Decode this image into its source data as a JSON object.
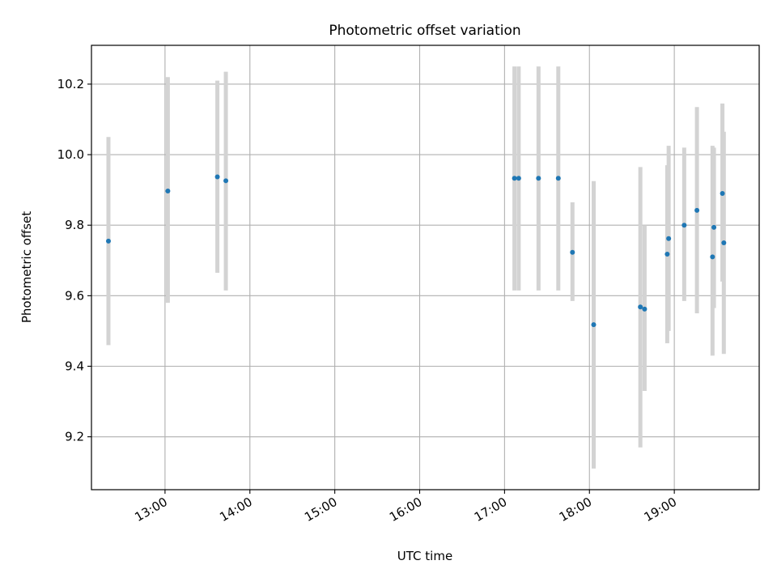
{
  "chart_data": {
    "type": "scatter",
    "title": "Photometric offset variation",
    "xlabel": "UTC time",
    "ylabel": "Photometric offset",
    "grid": true,
    "xlim": [
      "12:08",
      "20:00"
    ],
    "ylim": [
      9.05,
      10.31
    ],
    "x_ticks": [
      "13:00",
      "14:00",
      "15:00",
      "16:00",
      "17:00",
      "18:00",
      "19:00"
    ],
    "y_ticks": [
      "9.2",
      "9.4",
      "9.6",
      "9.8",
      "10.0",
      "10.2"
    ],
    "colors": {
      "point": "#1f77b4",
      "errorbar": "#d3d3d3",
      "grid": "#b0b0b0"
    },
    "series": [
      {
        "points": [
          {
            "x": "12:20",
            "y": 9.755,
            "ylow": 9.46,
            "yhigh": 10.05
          },
          {
            "x": "13:02",
            "y": 9.897,
            "ylow": 9.58,
            "yhigh": 10.22
          },
          {
            "x": "13:37",
            "y": 9.937,
            "ylow": 9.665,
            "yhigh": 10.21
          },
          {
            "x": "13:43",
            "y": 9.926,
            "ylow": 9.615,
            "yhigh": 10.235
          },
          {
            "x": "17:07",
            "y": 9.933,
            "ylow": 9.615,
            "yhigh": 10.25
          },
          {
            "x": "17:10",
            "y": 9.933,
            "ylow": 9.615,
            "yhigh": 10.25
          },
          {
            "x": "17:24",
            "y": 9.933,
            "ylow": 9.615,
            "yhigh": 10.25
          },
          {
            "x": "17:38",
            "y": 9.933,
            "ylow": 9.615,
            "yhigh": 10.25
          },
          {
            "x": "17:48",
            "y": 9.723,
            "ylow": 9.585,
            "yhigh": 9.865
          },
          {
            "x": "18:03",
            "y": 9.518,
            "ylow": 9.11,
            "yhigh": 9.925
          },
          {
            "x": "18:36",
            "y": 9.568,
            "ylow": 9.17,
            "yhigh": 9.965
          },
          {
            "x": "18:39",
            "y": 9.562,
            "ylow": 9.33,
            "yhigh": 9.8
          },
          {
            "x": "18:55",
            "y": 9.718,
            "ylow": 9.465,
            "yhigh": 9.97
          },
          {
            "x": "18:56",
            "y": 9.762,
            "ylow": 9.5,
            "yhigh": 10.025
          },
          {
            "x": "19:07",
            "y": 9.8,
            "ylow": 9.585,
            "yhigh": 10.02
          },
          {
            "x": "19:16",
            "y": 9.842,
            "ylow": 9.55,
            "yhigh": 10.135
          },
          {
            "x": "19:27",
            "y": 9.71,
            "ylow": 9.43,
            "yhigh": 10.025
          },
          {
            "x": "19:28",
            "y": 9.794,
            "ylow": 9.565,
            "yhigh": 10.02
          },
          {
            "x": "19:34",
            "y": 9.89,
            "ylow": 9.64,
            "yhigh": 10.145
          },
          {
            "x": "19:35",
            "y": 9.75,
            "ylow": 9.435,
            "yhigh": 10.065
          }
        ]
      }
    ]
  }
}
